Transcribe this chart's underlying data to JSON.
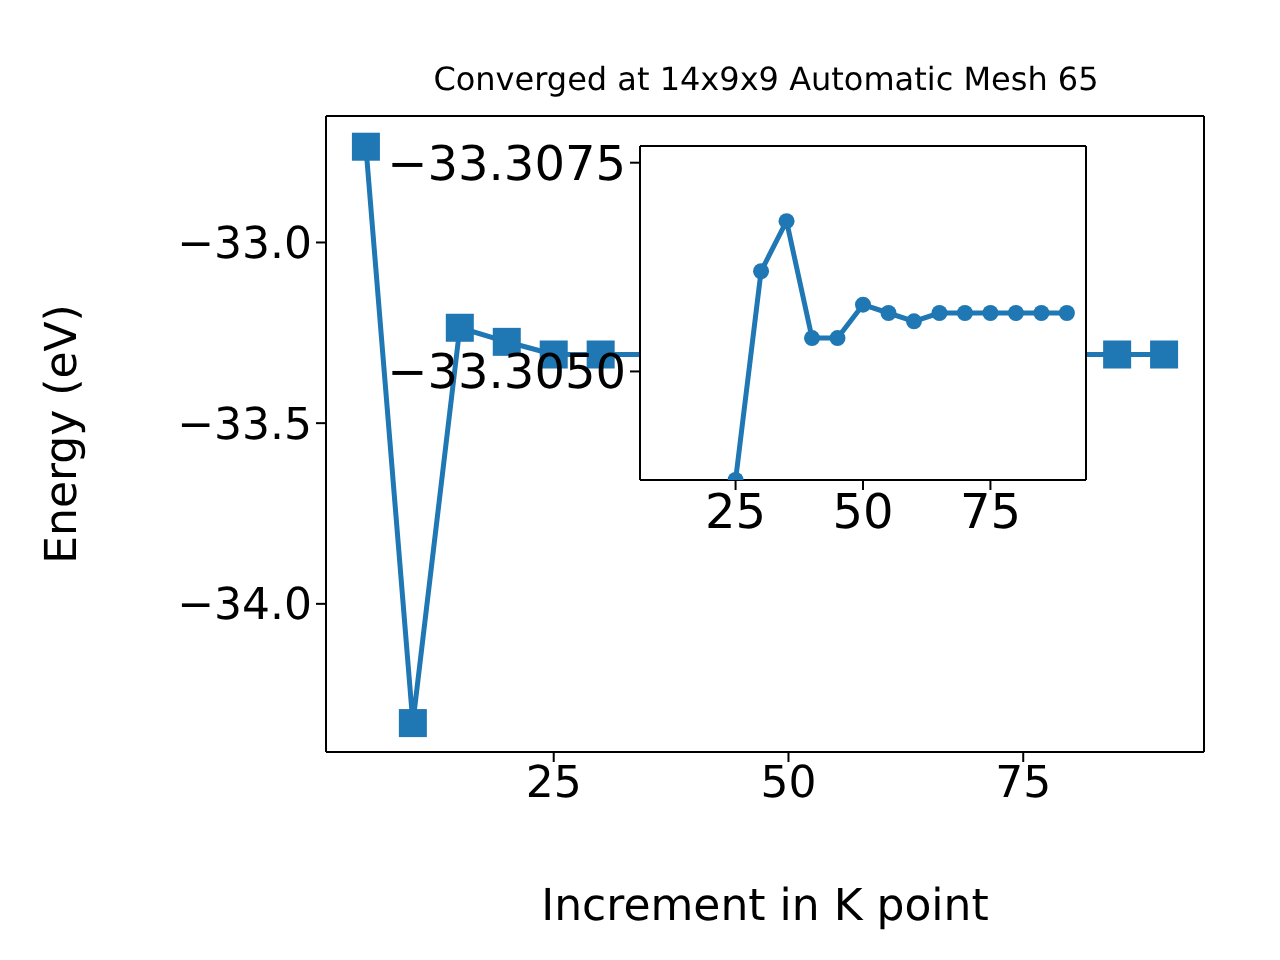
{
  "chart_data": [
    {
      "type": "line",
      "title": "Converged at 14x9x9 Automatic Mesh 65",
      "xlabel": "Increment in K point",
      "ylabel": "Energy (eV)",
      "x": [
        5,
        10,
        15,
        20,
        25,
        30,
        35,
        40,
        45,
        50,
        55,
        60,
        65,
        70,
        75,
        80,
        85,
        90
      ],
      "series": [
        {
          "color": "#1f77b4",
          "values": [
            -32.735,
            -34.33,
            -33.236,
            -33.275,
            -33.31,
            -33.31,
            null,
            null,
            null,
            null,
            null,
            null,
            null,
            null,
            null,
            null,
            -33.31,
            -33.31
          ]
        }
      ],
      "xlim": [
        0.75,
        94.25
      ],
      "ylim": [
        -34.41,
        -32.65
      ],
      "xticks": [
        25,
        50,
        75
      ],
      "yticks": [
        {
          "value": -34,
          "label": "−34.0"
        },
        {
          "value": -33.5,
          "label": "−33.5"
        },
        {
          "value": -33,
          "label": "−33.0"
        }
      ],
      "marker": "square",
      "grid": false,
      "legend": false
    },
    {
      "type": "line",
      "x": [
        25,
        30,
        35,
        40,
        45,
        50,
        55,
        60,
        65,
        70,
        75,
        80,
        85,
        90
      ],
      "series": [
        {
          "color": "#1f77b4",
          "values": [
            -33.3037,
            -33.3062,
            -33.3068,
            -33.3054,
            -33.3054,
            -33.3058,
            -33.3057,
            -33.3056,
            -33.3057,
            -33.3057,
            -33.3057,
            -33.3057,
            -33.3057,
            -33.3057
          ]
        }
      ],
      "xlim": [
        6.25,
        93.75
      ],
      "ylim": [
        -33.3037,
        -33.3077
      ],
      "xticks": [
        25,
        50,
        75
      ],
      "yticks": [
        {
          "value": -33.3075,
          "label": "−33.3075"
        },
        {
          "value": -33.305,
          "label": "−33.3050"
        }
      ],
      "marker": "circle",
      "grid": false,
      "legend": false
    }
  ]
}
